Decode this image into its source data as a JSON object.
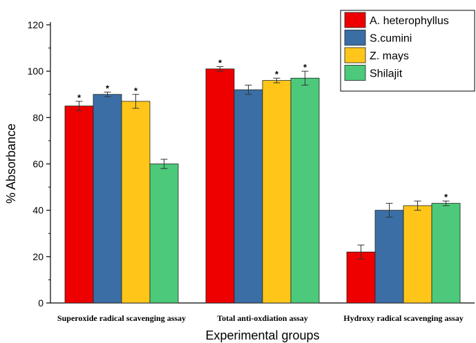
{
  "chart_data": {
    "type": "bar",
    "xlabel": "Experimental groups",
    "ylabel": "% Absorbance",
    "ylim": [
      0,
      120
    ],
    "yticks": [
      0,
      20,
      40,
      60,
      80,
      100,
      120
    ],
    "categories": [
      "Superoxide radical scavenging assay",
      "Total anti-oxdiation assay",
      "Hydroxy radical scavenging assay"
    ],
    "series": [
      {
        "name": "A. heterophyllus",
        "color": "#ee0000",
        "values": [
          85,
          101,
          22
        ],
        "errors": [
          2,
          1,
          3
        ],
        "significance": [
          "*",
          "*",
          ""
        ]
      },
      {
        "name": "S.cumini",
        "color": "#3a6ea5",
        "values": [
          90,
          92,
          40
        ],
        "errors": [
          1,
          2,
          3
        ],
        "significance": [
          "*",
          "",
          ""
        ]
      },
      {
        "name": "Z. mays",
        "color": "#ffc619",
        "values": [
          87,
          96,
          42
        ],
        "errors": [
          3,
          1,
          2
        ],
        "significance": [
          "*",
          "*",
          ""
        ]
      },
      {
        "name": "Shilajit",
        "color": "#4cc97a",
        "values": [
          60,
          97,
          43
        ],
        "errors": [
          2,
          3,
          1
        ],
        "significance": [
          "",
          "*",
          "*"
        ]
      }
    ],
    "legend": "top-right",
    "grid": false
  }
}
